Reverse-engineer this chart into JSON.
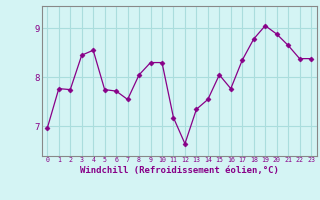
{
  "x": [
    0,
    1,
    2,
    3,
    4,
    5,
    6,
    7,
    8,
    9,
    10,
    11,
    12,
    13,
    14,
    15,
    16,
    17,
    18,
    19,
    20,
    21,
    22,
    23
  ],
  "y": [
    6.97,
    7.77,
    7.75,
    8.45,
    8.55,
    7.75,
    7.72,
    7.55,
    8.05,
    8.3,
    8.3,
    7.18,
    6.65,
    7.35,
    7.55,
    8.05,
    7.77,
    8.35,
    8.78,
    9.05,
    8.88,
    8.65,
    8.38,
    8.38
  ],
  "line_color": "#880088",
  "marker": "D",
  "marker_size": 2.5,
  "bg_color": "#d4f4f4",
  "grid_color": "#aadddd",
  "xlabel": "Windchill (Refroidissement éolien,°C)",
  "xlabel_fontsize": 6.5,
  "ytick_labels": [
    "7",
    "8",
    "9"
  ],
  "ytick_values": [
    7,
    8,
    9
  ],
  "ylim": [
    6.4,
    9.45
  ],
  "xlim": [
    -0.5,
    23.5
  ],
  "xtick_fontsize": 4.8,
  "ytick_fontsize": 6.5,
  "tick_color": "#880088",
  "spine_color": "#888888",
  "figsize": [
    3.2,
    2.0
  ],
  "dpi": 100
}
